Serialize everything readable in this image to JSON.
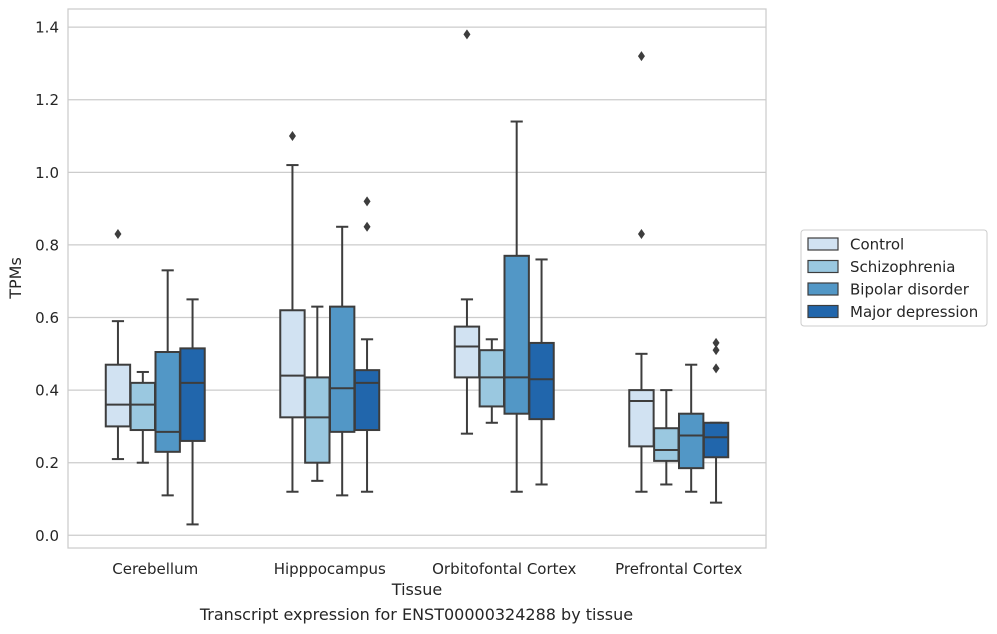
{
  "caption": "Transcript expression for ENST00000324288 by tissue",
  "chart_data": {
    "type": "box",
    "xlabel": "Tissue",
    "ylabel": "TPMs",
    "ylim": [
      -0.035,
      1.45
    ],
    "yticks": [
      0.0,
      0.2,
      0.4,
      0.6,
      0.8,
      1.0,
      1.2,
      1.4
    ],
    "ytick_labels": [
      "0.0",
      "0.2",
      "0.4",
      "0.6",
      "0.8",
      "1.0",
      "1.2",
      "1.4"
    ],
    "grid": "horizontal",
    "legend_placement": "right, outside",
    "categories": [
      "Cerebellum",
      "Hipppocampus",
      "Orbitofontal Cortex",
      "Prefrontal Cortex"
    ],
    "series": [
      {
        "name": "Control",
        "color": "#d1e2f2",
        "boxes": [
          {
            "whislo": 0.21,
            "q1": 0.3,
            "med": 0.36,
            "q3": 0.47,
            "whishi": 0.59,
            "fliers": [
              0.83
            ]
          },
          {
            "whislo": 0.12,
            "q1": 0.325,
            "med": 0.44,
            "q3": 0.62,
            "whishi": 1.02,
            "fliers": [
              1.1
            ]
          },
          {
            "whislo": 0.28,
            "q1": 0.435,
            "med": 0.52,
            "q3": 0.575,
            "whishi": 0.65,
            "fliers": [
              1.38
            ]
          },
          {
            "whislo": 0.12,
            "q1": 0.245,
            "med": 0.37,
            "q3": 0.4,
            "whishi": 0.5,
            "fliers": [
              0.83,
              1.32
            ]
          }
        ]
      },
      {
        "name": "Schizophrenia",
        "color": "#9ac8e0",
        "boxes": [
          {
            "whislo": 0.2,
            "q1": 0.29,
            "med": 0.36,
            "q3": 0.42,
            "whishi": 0.45,
            "fliers": []
          },
          {
            "whislo": 0.15,
            "q1": 0.2,
            "med": 0.325,
            "q3": 0.435,
            "whishi": 0.63,
            "fliers": []
          },
          {
            "whislo": 0.31,
            "q1": 0.355,
            "med": 0.435,
            "q3": 0.51,
            "whishi": 0.54,
            "fliers": []
          },
          {
            "whislo": 0.14,
            "q1": 0.205,
            "med": 0.235,
            "q3": 0.295,
            "whishi": 0.4,
            "fliers": []
          }
        ]
      },
      {
        "name": "Bipolar disorder",
        "color": "#5297c6",
        "boxes": [
          {
            "whislo": 0.11,
            "q1": 0.23,
            "med": 0.285,
            "q3": 0.505,
            "whishi": 0.73,
            "fliers": []
          },
          {
            "whislo": 0.11,
            "q1": 0.285,
            "med": 0.405,
            "q3": 0.63,
            "whishi": 0.85,
            "fliers": []
          },
          {
            "whislo": 0.12,
            "q1": 0.335,
            "med": 0.435,
            "q3": 0.77,
            "whishi": 1.14,
            "fliers": []
          },
          {
            "whislo": 0.12,
            "q1": 0.185,
            "med": 0.275,
            "q3": 0.335,
            "whishi": 0.47,
            "fliers": []
          }
        ]
      },
      {
        "name": "Major depression",
        "color": "#2166ac",
        "boxes": [
          {
            "whislo": 0.03,
            "q1": 0.26,
            "med": 0.42,
            "q3": 0.515,
            "whishi": 0.65,
            "fliers": []
          },
          {
            "whislo": 0.12,
            "q1": 0.29,
            "med": 0.42,
            "q3": 0.455,
            "whishi": 0.54,
            "fliers": [
              0.85,
              0.92
            ]
          },
          {
            "whislo": 0.14,
            "q1": 0.32,
            "med": 0.43,
            "q3": 0.53,
            "whishi": 0.76,
            "fliers": []
          },
          {
            "whislo": 0.09,
            "q1": 0.215,
            "med": 0.27,
            "q3": 0.31,
            "whishi": 0.31,
            "fliers": [
              0.46,
              0.51,
              0.53
            ]
          }
        ]
      }
    ]
  }
}
